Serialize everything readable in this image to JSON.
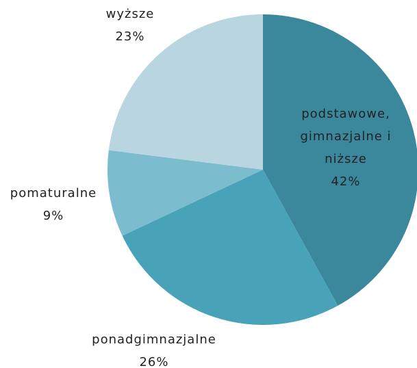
{
  "chart_data": {
    "type": "pie",
    "categories": [
      "podstawowe, gimnazjalne i niższe",
      "ponadgimnazjalne",
      "pomaturalne",
      "wyższe"
    ],
    "values": [
      42,
      26,
      9,
      23
    ],
    "value_labels": [
      "42%",
      "26%",
      "9%",
      "23%"
    ],
    "colors": [
      "#3b889c",
      "#48a3b9",
      "#7cbccf",
      "#b8d5e0"
    ]
  }
}
